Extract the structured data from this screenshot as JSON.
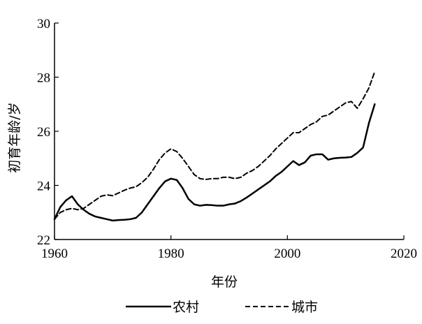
{
  "chart_data": {
    "type": "line",
    "xlabel": "年份",
    "ylabel": "初育年龄/岁",
    "xlim": [
      1960,
      2020
    ],
    "ylim": [
      22,
      30
    ],
    "xticks": [
      1960,
      1980,
      2000,
      2020
    ],
    "yticks": [
      22,
      24,
      26,
      28,
      30
    ],
    "grid": false,
    "legend_position": "bottom",
    "series": [
      {
        "name": "农村",
        "style": "solid",
        "color": "#000000",
        "x": [
          1960,
          1961,
          1962,
          1963,
          1964,
          1965,
          1966,
          1967,
          1968,
          1969,
          1970,
          1971,
          1972,
          1973,
          1974,
          1975,
          1976,
          1977,
          1978,
          1979,
          1980,
          1981,
          1982,
          1983,
          1984,
          1985,
          1986,
          1987,
          1988,
          1989,
          1990,
          1991,
          1992,
          1993,
          1994,
          1995,
          1996,
          1997,
          1998,
          1999,
          2000,
          2001,
          2002,
          2003,
          2004,
          2005,
          2006,
          2007,
          2008,
          2009,
          2010,
          2011,
          2012,
          2013,
          2014,
          2015
        ],
        "values": [
          22.75,
          23.2,
          23.45,
          23.6,
          23.3,
          23.1,
          22.95,
          22.85,
          22.8,
          22.75,
          22.7,
          22.72,
          22.73,
          22.75,
          22.8,
          23.0,
          23.3,
          23.6,
          23.9,
          24.15,
          24.25,
          24.2,
          23.9,
          23.5,
          23.3,
          23.25,
          23.28,
          23.27,
          23.25,
          23.25,
          23.3,
          23.33,
          23.42,
          23.55,
          23.7,
          23.85,
          24.0,
          24.15,
          24.35,
          24.5,
          24.7,
          24.9,
          24.75,
          24.85,
          25.1,
          25.15,
          25.15,
          24.95,
          25.0,
          25.02,
          25.03,
          25.05,
          25.2,
          25.4,
          26.3,
          27.0
        ]
      },
      {
        "name": "城市",
        "style": "dashed",
        "color": "#000000",
        "x": [
          1960,
          1961,
          1962,
          1963,
          1964,
          1965,
          1966,
          1967,
          1968,
          1969,
          1970,
          1971,
          1972,
          1973,
          1974,
          1975,
          1976,
          1977,
          1978,
          1979,
          1980,
          1981,
          1982,
          1983,
          1984,
          1985,
          1986,
          1987,
          1988,
          1989,
          1990,
          1991,
          1992,
          1993,
          1994,
          1995,
          1996,
          1997,
          1998,
          1999,
          2000,
          2001,
          2002,
          2003,
          2004,
          2005,
          2006,
          2007,
          2008,
          2009,
          2010,
          2011,
          2012,
          2013,
          2014,
          2015
        ],
        "values": [
          22.75,
          23.0,
          23.1,
          23.15,
          23.1,
          23.15,
          23.3,
          23.45,
          23.6,
          23.65,
          23.62,
          23.72,
          23.82,
          23.9,
          23.95,
          24.1,
          24.3,
          24.6,
          24.95,
          25.2,
          25.35,
          25.25,
          25.0,
          24.7,
          24.4,
          24.25,
          24.22,
          24.25,
          24.25,
          24.3,
          24.3,
          24.25,
          24.3,
          24.45,
          24.55,
          24.7,
          24.9,
          25.1,
          25.35,
          25.55,
          25.75,
          25.95,
          25.95,
          26.1,
          26.25,
          26.35,
          26.55,
          26.6,
          26.75,
          26.9,
          27.05,
          27.1,
          26.85,
          27.2,
          27.6,
          28.2
        ]
      }
    ]
  }
}
